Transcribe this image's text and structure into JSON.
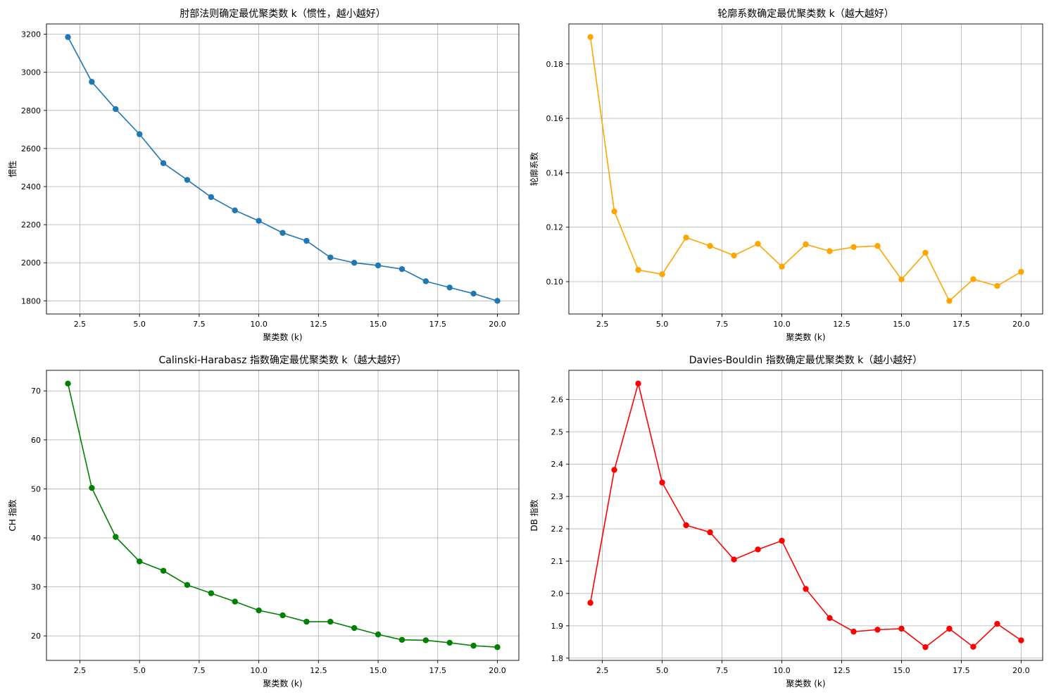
{
  "chart_data": [
    {
      "type": "line",
      "title": "肘部法则确定最优聚类数 k（惯性，越小越好）",
      "xlabel": "聚类数 (k)",
      "ylabel": "惯性",
      "x": [
        2,
        3,
        4,
        5,
        6,
        7,
        8,
        9,
        10,
        11,
        12,
        13,
        14,
        15,
        16,
        17,
        18,
        19,
        20
      ],
      "series": [
        {
          "values": [
            3185,
            2950,
            2807,
            2675,
            2523,
            2435,
            2345,
            2275,
            2220,
            2157,
            2115,
            2028,
            2000,
            1986,
            1967,
            1903,
            1870,
            1838,
            1800
          ]
        }
      ],
      "xlim": [
        1.1,
        20.9
      ],
      "ylim": [
        1731,
        3254
      ],
      "xticks": [
        2.5,
        5.0,
        7.5,
        10.0,
        12.5,
        15.0,
        17.5,
        20.0
      ],
      "xtick_labels": [
        "2.5",
        "5.0",
        "7.5",
        "10.0",
        "12.5",
        "15.0",
        "17.5",
        "20.0"
      ],
      "yticks": [
        1800,
        2000,
        2200,
        2400,
        2600,
        2800,
        3000,
        3200
      ],
      "ytick_labels": [
        "1800",
        "2000",
        "2200",
        "2400",
        "2600",
        "2800",
        "3000",
        "3200"
      ],
      "color": "#1f77b4",
      "grid": true
    },
    {
      "type": "line",
      "title": "轮廓系数确定最优聚类数 k（越大越好）",
      "xlabel": "聚类数 (k)",
      "ylabel": "轮廓系数",
      "x": [
        2,
        3,
        4,
        5,
        6,
        7,
        8,
        9,
        10,
        11,
        12,
        13,
        14,
        15,
        16,
        17,
        18,
        19,
        20
      ],
      "series": [
        {
          "values": [
            0.1899,
            0.1258,
            0.1043,
            0.1027,
            0.1162,
            0.1131,
            0.1096,
            0.1139,
            0.1055,
            0.1137,
            0.1112,
            0.1127,
            0.1131,
            0.1008,
            0.1106,
            0.0929,
            0.1009,
            0.0984,
            0.1036
          ]
        }
      ],
      "xlim": [
        1.1,
        20.9
      ],
      "ylim": [
        0.0881,
        0.1947
      ],
      "xticks": [
        2.5,
        5.0,
        7.5,
        10.0,
        12.5,
        15.0,
        17.5,
        20.0
      ],
      "xtick_labels": [
        "2.5",
        "5.0",
        "7.5",
        "10.0",
        "12.5",
        "15.0",
        "17.5",
        "20.0"
      ],
      "yticks": [
        0.1,
        0.12,
        0.14,
        0.16,
        0.18
      ],
      "ytick_labels": [
        "0.10",
        "0.12",
        "0.14",
        "0.16",
        "0.18"
      ],
      "color": "#ffa500",
      "grid": true
    },
    {
      "type": "line",
      "title": "Calinski-Harabasz 指数确定最优聚类数 k（越大越好）",
      "xlabel": "聚类数 (k)",
      "ylabel": "CH 指数",
      "x": [
        2,
        3,
        4,
        5,
        6,
        7,
        8,
        9,
        10,
        11,
        12,
        13,
        14,
        15,
        16,
        17,
        18,
        19,
        20
      ],
      "series": [
        {
          "values": [
            71.5,
            50.2,
            40.2,
            35.2,
            33.3,
            30.4,
            28.7,
            27.0,
            25.2,
            24.2,
            22.9,
            22.9,
            21.6,
            20.3,
            19.2,
            19.1,
            18.6,
            18.0,
            17.7
          ]
        }
      ],
      "xlim": [
        1.1,
        20.9
      ],
      "ylim": [
        15.0,
        74.2
      ],
      "xticks": [
        2.5,
        5.0,
        7.5,
        10.0,
        12.5,
        15.0,
        17.5,
        20.0
      ],
      "xtick_labels": [
        "2.5",
        "5.0",
        "7.5",
        "10.0",
        "12.5",
        "15.0",
        "17.5",
        "20.0"
      ],
      "yticks": [
        20,
        30,
        40,
        50,
        60,
        70
      ],
      "ytick_labels": [
        "20",
        "30",
        "40",
        "50",
        "60",
        "70"
      ],
      "color": "#008000",
      "grid": true
    },
    {
      "type": "line",
      "title": "Davies-Bouldin 指数确定最优聚类数 k（越小越好）",
      "xlabel": "聚类数 (k)",
      "ylabel": "DB 指数",
      "x": [
        2,
        3,
        4,
        5,
        6,
        7,
        8,
        9,
        10,
        11,
        12,
        13,
        14,
        15,
        16,
        17,
        18,
        19,
        20
      ],
      "series": [
        {
          "values": [
            1.971,
            2.382,
            2.649,
            2.343,
            2.211,
            2.189,
            2.105,
            2.136,
            2.163,
            2.014,
            1.924,
            1.882,
            1.888,
            1.891,
            1.834,
            1.891,
            1.835,
            1.906,
            1.855
          ]
        }
      ],
      "xlim": [
        1.1,
        20.9
      ],
      "ylim": [
        1.793,
        2.69
      ],
      "xticks": [
        2.5,
        5.0,
        7.5,
        10.0,
        12.5,
        15.0,
        17.5,
        20.0
      ],
      "xtick_labels": [
        "2.5",
        "5.0",
        "7.5",
        "10.0",
        "12.5",
        "15.0",
        "17.5",
        "20.0"
      ],
      "yticks": [
        1.8,
        1.9,
        2.0,
        2.1,
        2.2,
        2.3,
        2.4,
        2.5,
        2.6
      ],
      "ytick_labels": [
        "1.8",
        "1.9",
        "2.0",
        "2.1",
        "2.2",
        "2.3",
        "2.4",
        "2.5",
        "2.6"
      ],
      "color": "#ff0000",
      "grid": true
    }
  ]
}
